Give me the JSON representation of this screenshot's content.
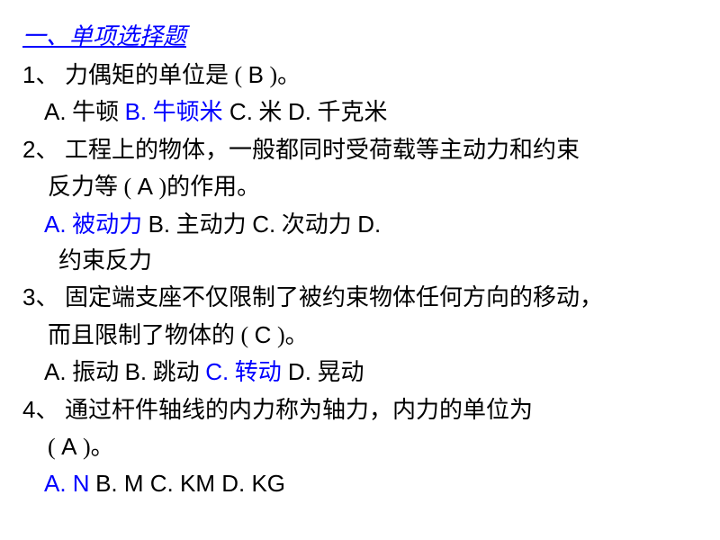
{
  "section_title": "一、单项选择题",
  "questions": [
    {
      "num": "1",
      "text_prefix": "、 力偶矩的单位是 (  ",
      "answer_letter": "B",
      "text_suffix": "  )。",
      "options": {
        "a_label": "A.",
        "a_text": " 牛顿  ",
        "b_label": "B.",
        "b_text": " 牛顿米",
        "c_label": "   C.",
        "c_text": " 米   ",
        "d_label": "D.",
        "d_text": " 千克米"
      }
    },
    {
      "num": "2",
      "text_line1": "、 工程上的物体，一般都同时受荷载等主动力和约束",
      "text_line2_prefix": "反力等  (  ",
      "answer_letter": "A",
      "text_line2_suffix": "  )的作用。",
      "options": {
        "a_label": "A.",
        "a_text": " 被动力",
        "b_label": "B.",
        "b_text": " 主动力    ",
        "c_label": "C.",
        "c_text": " 次动力            ",
        "d_label": "D.",
        "d_text_cont": " 约束反力"
      }
    },
    {
      "num": "3",
      "text_line1": "、 固定端支座不仅限制了被约束物体任何方向的移动，",
      "text_line2_prefix": "而且限制了物体的 (  ",
      "answer_letter": "C",
      "text_line2_suffix": "  )。",
      "options": {
        "a_label": "A.",
        "a_text": " 振动             ",
        "b_label": "B.",
        "b_text": " 跳动       ",
        "c_label": "C.",
        "c_text": " 转动",
        "d_label": "       D.",
        "d_text": " 晃动"
      }
    },
    {
      "num": "4",
      "text_line1": "、 通过杆件轴线的内力称为轴力，内力的单位为",
      "text_line2_prefix": " (  ",
      "answer_letter": "A",
      "text_line2_suffix": "  )。",
      "options": {
        "a_label": "A.",
        "a_text": " N",
        "b_label": "B.",
        "b_text": " M            ",
        "c_label": "C.",
        "c_text": " KM          ",
        "d_label": "D.",
        "d_text": " KG"
      }
    }
  ],
  "colors": {
    "highlight": "#0000ff",
    "text": "#000000",
    "background": "#ffffff"
  },
  "fonts": {
    "body_size": 26,
    "title_size": 26
  }
}
